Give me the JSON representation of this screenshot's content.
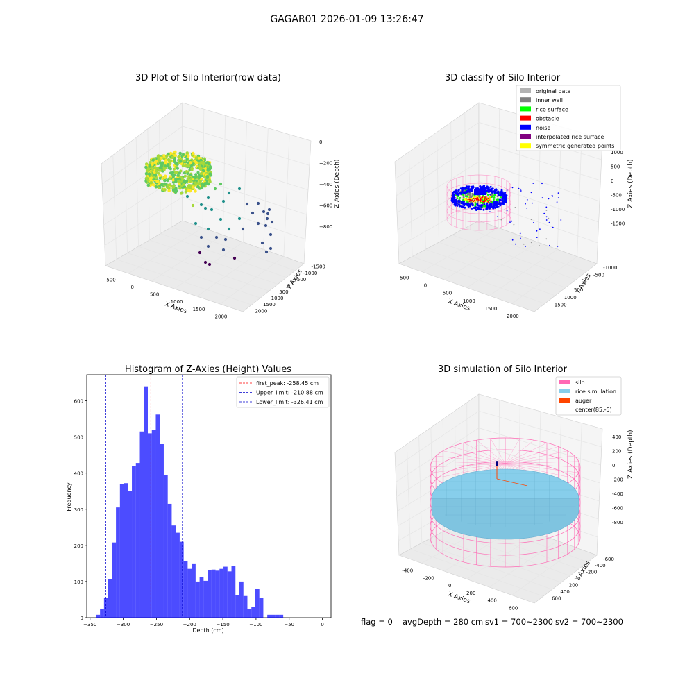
{
  "suptitle": "GAGAR01 2026-01-09 13:26:47",
  "footer": {
    "flag": "flag = 0",
    "avg_depth": "avgDepth = 280 cm",
    "sv1": "sv1 = 700~2300",
    "sv2": "sv2 = 700~2300"
  },
  "chart_data": [
    {
      "type": "scatter",
      "projection": "3d",
      "title": "3D Plot of Silo Interior(row data)",
      "xlabel": "X Axies",
      "ylabel": "Y Axies",
      "zlabel": "Z Axies (Depth)",
      "xticks": [
        "-500",
        "0",
        "500",
        "1000",
        "1500",
        "2000"
      ],
      "yticks": [
        "-1500",
        "-1000",
        "-500",
        "0",
        "500",
        "1000",
        "1500",
        "2000"
      ],
      "zticks": [
        "0",
        "−200",
        "−400",
        "−600",
        "−800"
      ],
      "xlim": [
        -600,
        2100
      ],
      "ylim": [
        -1600,
        2100
      ],
      "zlim": [
        -900,
        0
      ],
      "colormap": "viridis (by depth)"
    },
    {
      "type": "scatter",
      "projection": "3d",
      "title": "3D classify of Silo Interior",
      "xlabel": "X Axies",
      "ylabel": "Y Axies",
      "zlabel": "Z Axies (Depth)",
      "xticks": [
        "-500",
        "0",
        "500",
        "1000",
        "1500",
        "2000"
      ],
      "yticks": [
        "-1000",
        "-500",
        "0",
        "500",
        "1000",
        "1500"
      ],
      "zticks": [
        "1000",
        "500",
        "0",
        "-500",
        "-1000",
        "-1500"
      ],
      "xlim": [
        -600,
        2100
      ],
      "ylim": [
        -1100,
        1600
      ],
      "zlim": [
        -1600,
        1100
      ],
      "legend_position": "top-right",
      "legend": [
        {
          "label": "original data",
          "color": "#b3b3b3"
        },
        {
          "label": "inner wall",
          "color": "#808080"
        },
        {
          "label": "rice surface",
          "color": "#00ff00"
        },
        {
          "label": "obstacle",
          "color": "#ff0000"
        },
        {
          "label": "noise",
          "color": "#0000ff"
        },
        {
          "label": "interpolated rice surface",
          "color": "#800080"
        },
        {
          "label": "symmetric generated points",
          "color": "#ffff00"
        }
      ]
    },
    {
      "type": "bar",
      "subtype": "histogram",
      "title": "Histogram of Z-Axies (Height) Values",
      "xlabel": "Depth (cm)",
      "ylabel": "Frequency",
      "xlim": [
        -355,
        13
      ],
      "ylim": [
        0,
        672
      ],
      "xticks": [
        -350,
        -300,
        -250,
        -200,
        -150,
        -100,
        -50,
        0
      ],
      "yticks": [
        0,
        100,
        200,
        300,
        400,
        500,
        600
      ],
      "bin_width": 6,
      "bins_start": [
        -341,
        -335,
        -329,
        -323,
        -317,
        -311,
        -305,
        -299,
        -293,
        -287,
        -281,
        -275,
        -269,
        -263,
        -257,
        -251,
        -245,
        -239,
        -233,
        -227,
        -221,
        -215,
        -209,
        -203,
        -197,
        -191,
        -185,
        -179,
        -173,
        -167,
        -161,
        -155,
        -149,
        -143,
        -137,
        -131,
        -125,
        -119,
        -113,
        -107,
        -101,
        -95,
        -89,
        -83,
        -77,
        -71,
        -65,
        -59,
        -53,
        -47,
        -41,
        -35,
        -29,
        -23,
        -17,
        -11,
        -5
      ],
      "frequencies": [
        8,
        25,
        55,
        107,
        208,
        305,
        370,
        372,
        350,
        420,
        428,
        515,
        640,
        510,
        520,
        562,
        480,
        395,
        315,
        255,
        235,
        210,
        157,
        135,
        150,
        100,
        112,
        102,
        132,
        133,
        130,
        135,
        141,
        128,
        143,
        63,
        100,
        60,
        25,
        30,
        80,
        55,
        0,
        8,
        8,
        8,
        8,
        0,
        0,
        0,
        0,
        0,
        0,
        0,
        0,
        0,
        0
      ],
      "bar_color": "#0000ff",
      "legend_position": "top-right",
      "lines": [
        {
          "label": "first_peak: -258.45 cm",
          "x": -258.45,
          "color": "#ff0000"
        },
        {
          "label": "Upper_limit: -210.88 cm",
          "x": -210.88,
          "color": "#0000cc"
        },
        {
          "label": "Lower_limit: -326.41 cm",
          "x": -326.41,
          "color": "#0000cc"
        }
      ]
    },
    {
      "type": "scatter",
      "projection": "3d",
      "title": "3D simulation of Silo Interior",
      "xlabel": "X Axies",
      "ylabel": "Y Axies",
      "zlabel": "Z Axies (Depth)",
      "xticks": [
        "-400",
        "-200",
        "0",
        "200",
        "400",
        "600"
      ],
      "yticks": [
        "-600",
        "-400",
        "-200",
        "0",
        "200",
        "400",
        "600"
      ],
      "zticks": [
        "400",
        "200",
        "0",
        "-200",
        "-400",
        "-600",
        "-800"
      ],
      "xlim": [
        -500,
        700
      ],
      "ylim": [
        -700,
        700
      ],
      "zlim": [
        -900,
        500
      ],
      "legend_position": "top-right",
      "legend": [
        {
          "label": "silo",
          "color": "#ff69b4"
        },
        {
          "label": "rice simulation",
          "color": "#87ceeb"
        },
        {
          "label": "auger",
          "color": "#ff4500"
        },
        {
          "label": "center(85,-5)",
          "color": "#ffffff"
        }
      ]
    }
  ]
}
